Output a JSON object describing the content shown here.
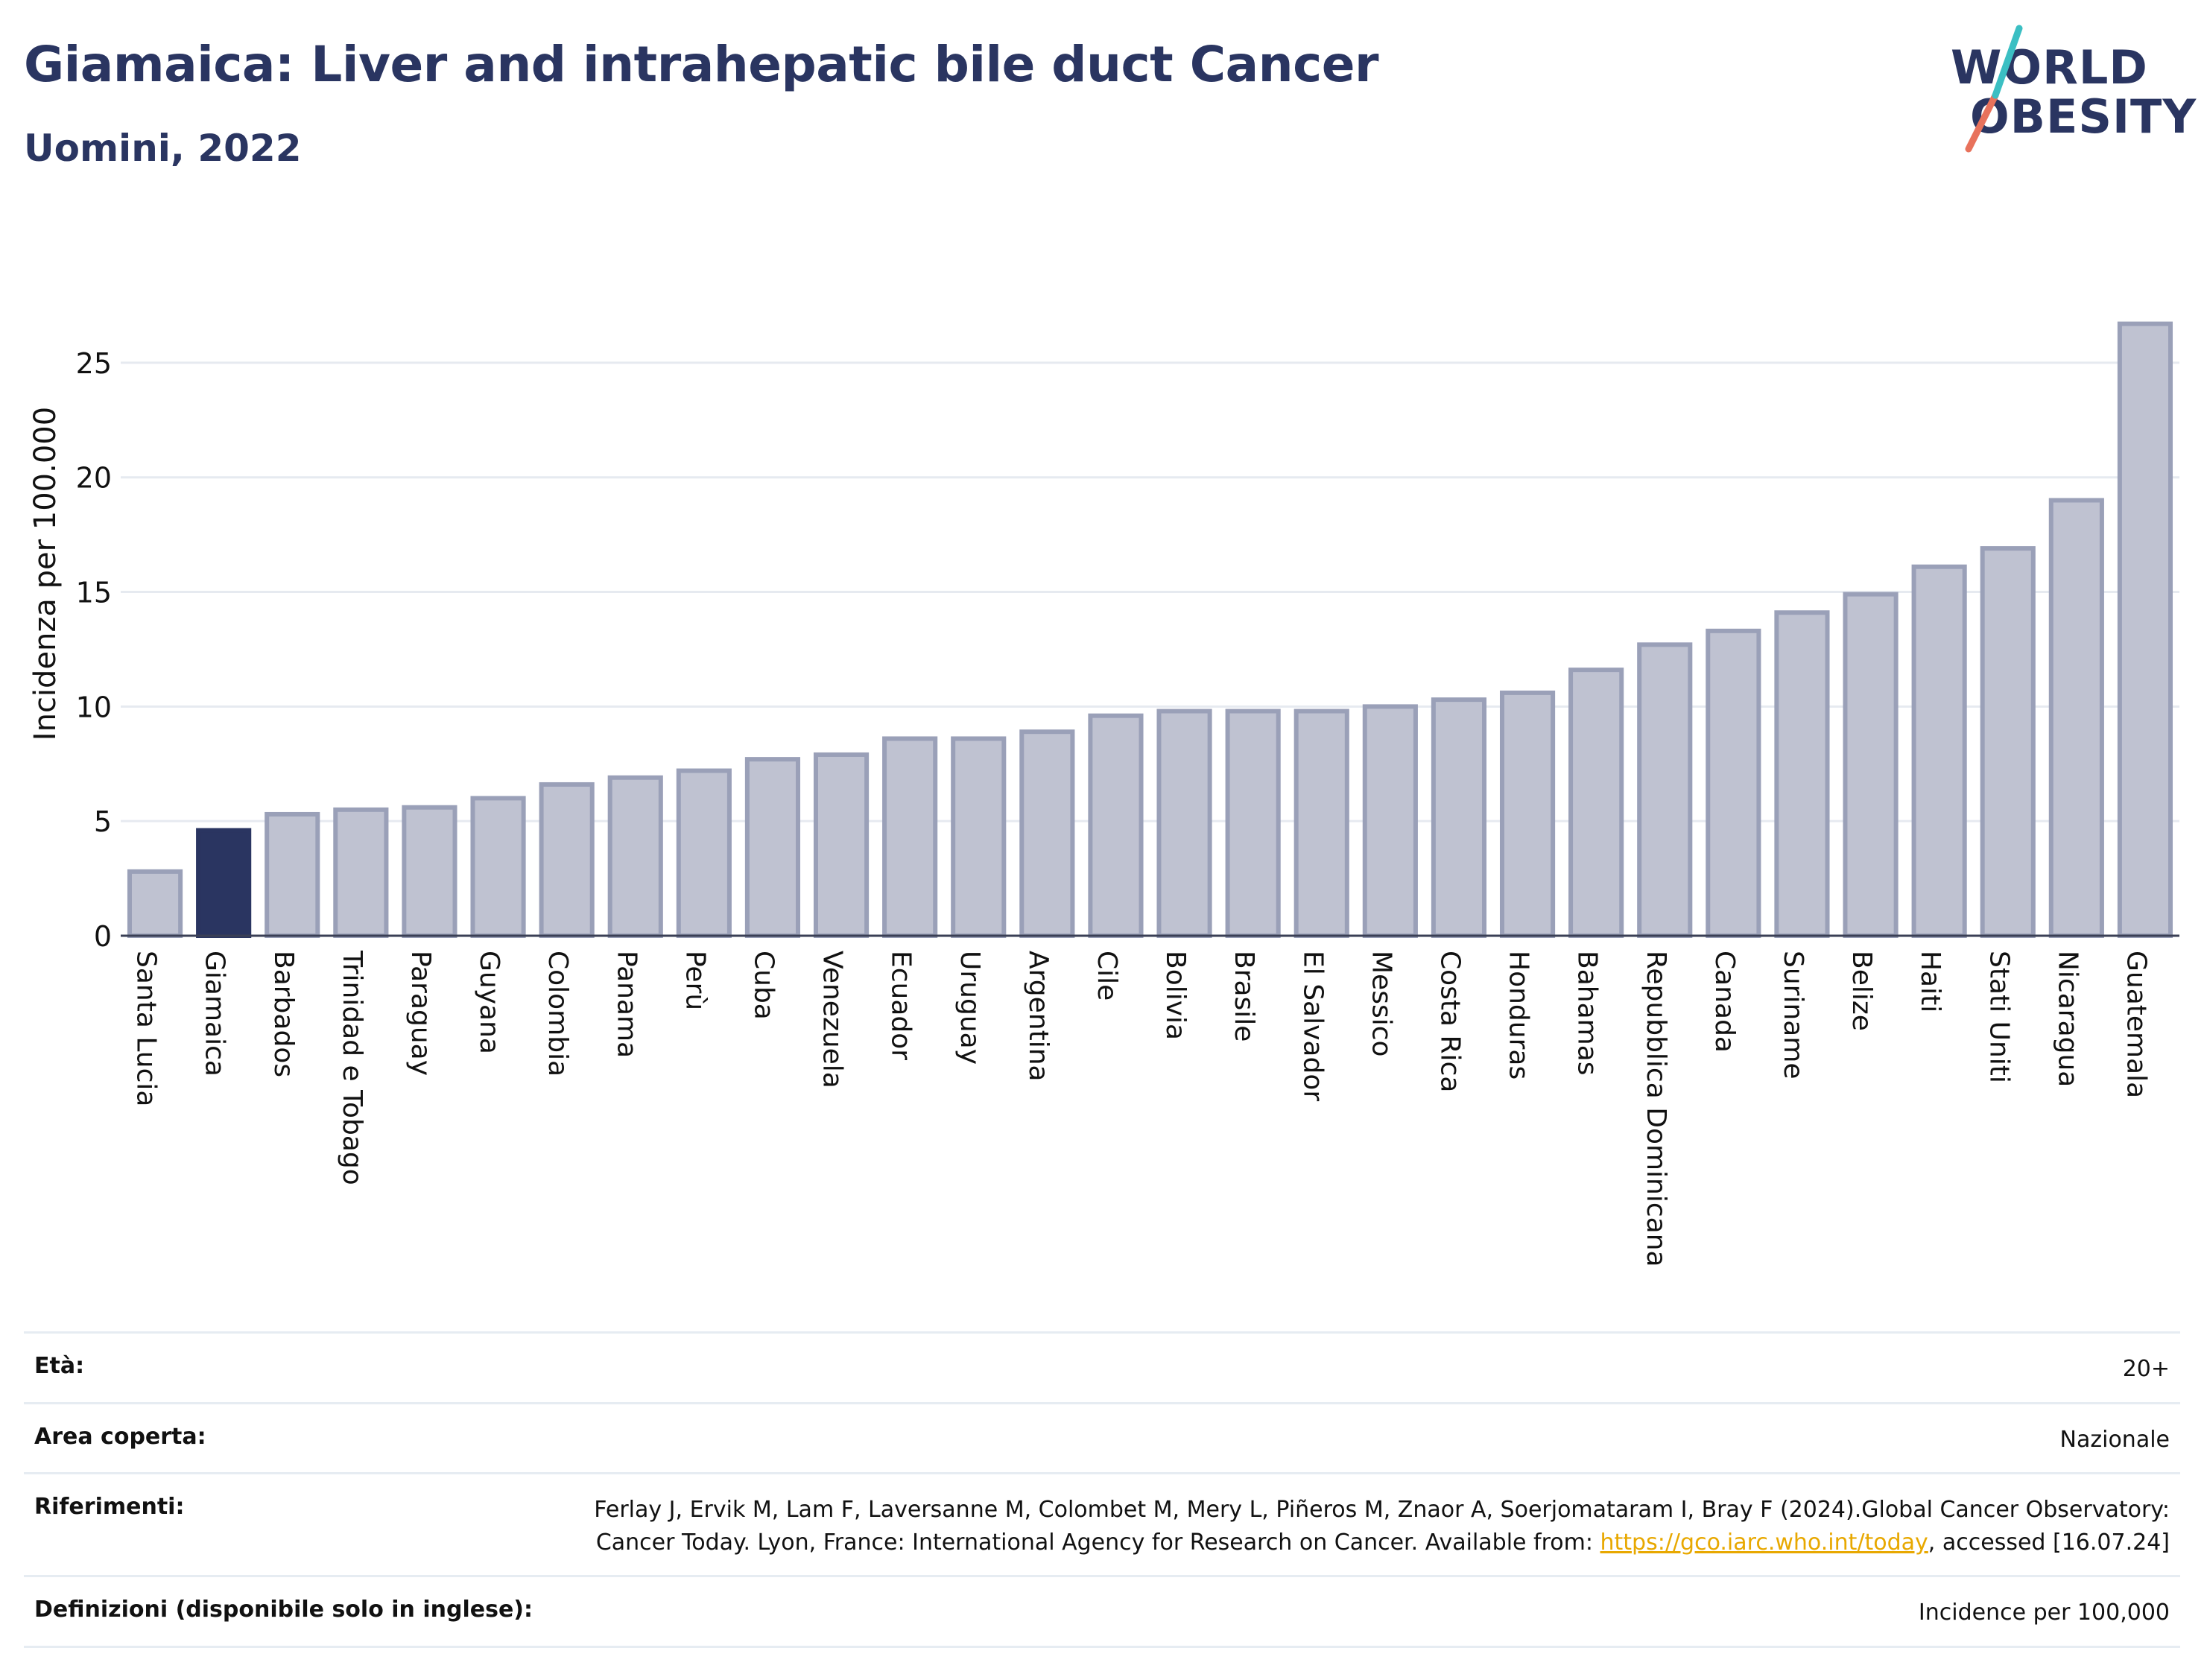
{
  "title": "Giamaica: Liver and intrahepatic bile duct Cancer",
  "subtitle": "Uomini, 2022",
  "logo": {
    "line1": "WORLD",
    "line2": "OBESITY",
    "colors": [
      "#3bbfc3",
      "#e8725c"
    ]
  },
  "colors": {
    "bar": "#bfc2d1",
    "bar_stroke": "#9aa0b8",
    "highlight": "#2a3561",
    "text": "#2a3561"
  },
  "chart_data": {
    "type": "bar",
    "title": "Giamaica: Liver and intrahepatic bile duct Cancer",
    "subtitle": "Uomini, 2022",
    "xlabel": "",
    "ylabel": "Incidenza per 100.000",
    "ylim": [
      0,
      27.5
    ],
    "yticks": [
      0,
      5,
      10,
      15,
      20,
      25
    ],
    "grid": true,
    "highlight": "Giamaica",
    "categories": [
      "Santa Lucia",
      "Giamaica",
      "Barbados",
      "Trinidad e Tobago",
      "Paraguay",
      "Guyana",
      "Colombia",
      "Panama",
      "Perù",
      "Cuba",
      "Venezuela",
      "Ecuador",
      "Uruguay",
      "Argentina",
      "Cile",
      "Bolivia",
      "Brasile",
      "El Salvador",
      "Messico",
      "Costa Rica",
      "Honduras",
      "Bahamas",
      "Repubblica Dominicana",
      "Canada",
      "Suriname",
      "Belize",
      "Haiti",
      "Stati Uniti",
      "Nicaragua",
      "Guatemala"
    ],
    "values": [
      2.8,
      4.6,
      5.3,
      5.5,
      5.6,
      6.0,
      6.6,
      6.9,
      7.2,
      7.7,
      7.9,
      8.6,
      8.6,
      8.9,
      9.6,
      9.8,
      9.8,
      9.8,
      10.0,
      10.3,
      10.6,
      11.6,
      12.7,
      13.3,
      14.1,
      14.9,
      16.1,
      16.9,
      19.0,
      26.7
    ]
  },
  "meta": [
    {
      "label": "Età:",
      "value": "20+"
    },
    {
      "label": "Area coperta:",
      "value": "Nazionale"
    },
    {
      "label": "Riferimenti:",
      "value_pre": "Ferlay J, Ervik M, Lam F, Laversanne M, Colombet M, Mery L, Piñeros M, Znaor A, Soerjomataram I, Bray F (2024).Global Cancer Observatory: Cancer Today. Lyon, France: International Agency for Research on Cancer. Available from: ",
      "link": "https://gco.iarc.who.int/today",
      "value_post": ", accessed [16.07.24]"
    },
    {
      "label": "Definizioni (disponibile solo in inglese):",
      "value": "Incidence per 100,000"
    }
  ]
}
